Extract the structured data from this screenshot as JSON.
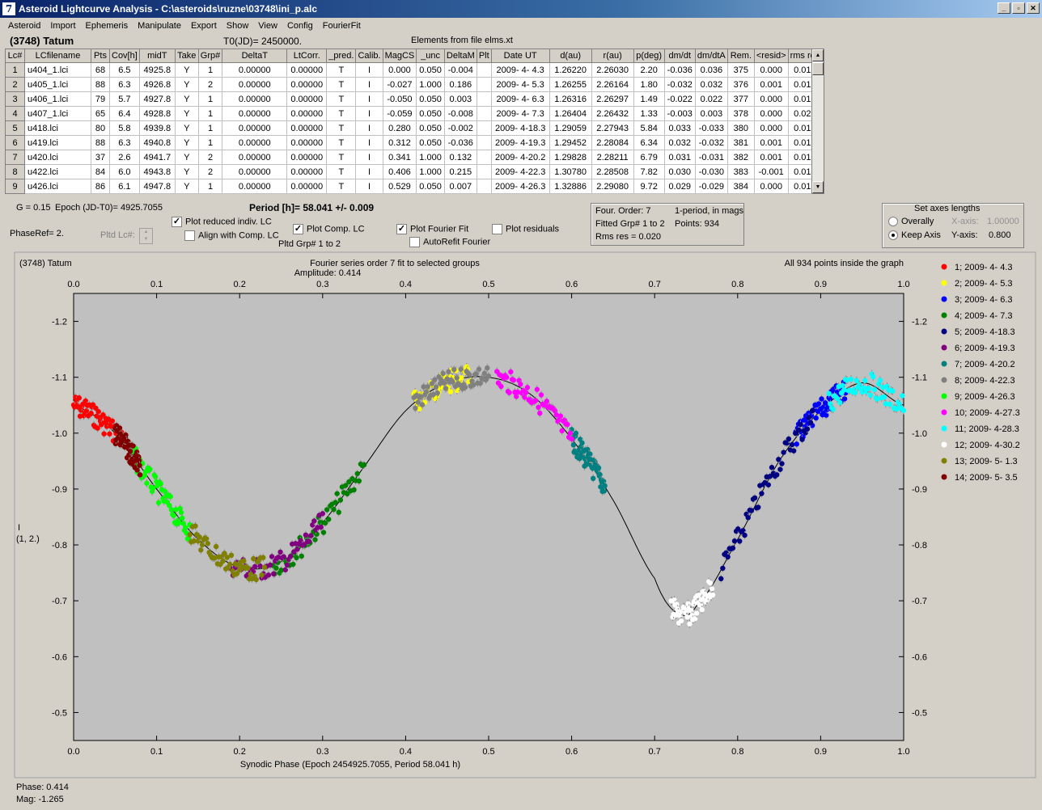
{
  "window": {
    "title": "Asteroid Lightcurve Analysis - C:\\asteroids\\ruzne\\03748\\ini_p.alc",
    "icon_letter": "7",
    "minimize": "_",
    "maximize": "▫",
    "close": "✕"
  },
  "menu": [
    "Asteroid",
    "Import",
    "Ephemeris",
    "Manipulate",
    "Export",
    "Show",
    "View",
    "Config",
    "FourierFit"
  ],
  "header": {
    "asteroid": "(3748) Tatum",
    "t0": "T0(JD)= 2450000.",
    "elements": "Elements from file elms.xt"
  },
  "table": {
    "columns": [
      "Lc#",
      "LCfilename",
      "Pts",
      "Cov[h]",
      "midT",
      "Take",
      "Grp#",
      "DeltaT",
      "LtCorr.",
      "_pred.",
      "Calib.",
      "MagCS",
      "_unc",
      "DeltaM",
      "Plt",
      "Date UT",
      "d(au)",
      "r(au)",
      "p(deg)",
      "dm/dt",
      "dm/dtA",
      "Rem.",
      "<resid>",
      "rms res"
    ],
    "rows": [
      [
        "1",
        "u404_1.lci",
        "68",
        "6.5",
        "4925.8",
        "Y",
        "1",
        "0.00000",
        "0.00000",
        "T",
        "I",
        "0.000",
        "0.050",
        "-0.004",
        "",
        "2009- 4- 4.3",
        "1.26220",
        "2.26030",
        "2.20",
        "-0.036",
        "0.036",
        "375",
        "0.000",
        "0.016"
      ],
      [
        "2",
        "u405_1.lci",
        "88",
        "6.3",
        "4926.8",
        "Y",
        "2",
        "0.00000",
        "0.00000",
        "T",
        "I",
        "-0.027",
        "1.000",
        "0.186",
        "",
        "2009- 4- 5.3",
        "1.26255",
        "2.26164",
        "1.80",
        "-0.032",
        "0.032",
        "376",
        "0.001",
        "0.015"
      ],
      [
        "3",
        "u406_1.lci",
        "79",
        "5.7",
        "4927.8",
        "Y",
        "1",
        "0.00000",
        "0.00000",
        "T",
        "I",
        "-0.050",
        "0.050",
        "0.003",
        "",
        "2009- 4- 6.3",
        "1.26316",
        "2.26297",
        "1.49",
        "-0.022",
        "0.022",
        "377",
        "0.000",
        "0.012"
      ],
      [
        "4",
        "u407_1.lci",
        "65",
        "6.4",
        "4928.8",
        "Y",
        "1",
        "0.00000",
        "0.00000",
        "T",
        "I",
        "-0.059",
        "0.050",
        "-0.008",
        "",
        "2009- 4- 7.3",
        "1.26404",
        "2.26432",
        "1.33",
        "-0.003",
        "0.003",
        "378",
        "0.000",
        "0.029"
      ],
      [
        "5",
        "u418.lci",
        "80",
        "5.8",
        "4939.8",
        "Y",
        "1",
        "0.00000",
        "0.00000",
        "T",
        "I",
        "0.280",
        "0.050",
        "-0.002",
        "",
        "2009- 4-18.3",
        "1.29059",
        "2.27943",
        "5.84",
        "0.033",
        "-0.033",
        "380",
        "0.000",
        "0.012"
      ],
      [
        "6",
        "u419.lci",
        "88",
        "6.3",
        "4940.8",
        "Y",
        "1",
        "0.00000",
        "0.00000",
        "T",
        "I",
        "0.312",
        "0.050",
        "-0.036",
        "",
        "2009- 4-19.3",
        "1.29452",
        "2.28084",
        "6.34",
        "0.032",
        "-0.032",
        "381",
        "0.001",
        "0.017"
      ],
      [
        "7",
        "u420.lci",
        "37",
        "2.6",
        "4941.7",
        "Y",
        "2",
        "0.00000",
        "0.00000",
        "T",
        "I",
        "0.341",
        "1.000",
        "0.132",
        "",
        "2009- 4-20.2",
        "1.29828",
        "2.28211",
        "6.79",
        "0.031",
        "-0.031",
        "382",
        "0.001",
        "0.019"
      ],
      [
        "8",
        "u422.lci",
        "84",
        "6.0",
        "4943.8",
        "Y",
        "2",
        "0.00000",
        "0.00000",
        "T",
        "I",
        "0.406",
        "1.000",
        "0.215",
        "",
        "2009- 4-22.3",
        "1.30780",
        "2.28508",
        "7.82",
        "0.030",
        "-0.030",
        "383",
        "-0.001",
        "0.013"
      ],
      [
        "9",
        "u426.lci",
        "86",
        "6.1",
        "4947.8",
        "Y",
        "1",
        "0.00000",
        "0.00000",
        "T",
        "I",
        "0.529",
        "0.050",
        "0.007",
        "",
        "2009- 4-26.3",
        "1.32886",
        "2.29080",
        "9.72",
        "0.029",
        "-0.029",
        "384",
        "0.000",
        "0.019"
      ]
    ]
  },
  "params": {
    "g": "G = 0.15",
    "epoch": "Epoch (JD-T0)= 4925.7055",
    "period": "Period [h]= 58.041 +/- 0.009",
    "phase_ref": "PhaseRef= 2.",
    "pltd_lc": "Pltd Lc#:",
    "pltd_grp": "Pltd Grp#  1   to   2"
  },
  "options": {
    "plot_reduced": {
      "label": "Plot reduced indiv. LC",
      "checked": true
    },
    "align": {
      "label": "Align with Comp. LC",
      "checked": false
    },
    "plot_comp": {
      "label": "Plot Comp. LC",
      "checked": true
    },
    "plot_fourier": {
      "label": "Plot Fourier Fit",
      "checked": true
    },
    "autorefit": {
      "label": "AutoRefit Fourier",
      "checked": false
    },
    "plot_residuals": {
      "label": "Plot residuals",
      "checked": false
    }
  },
  "fourier_info": {
    "order": "Four. Order:  7",
    "mode": "1-period, in mags",
    "fitted": "Fitted Grp# 1 to 2",
    "points": "Points: 934",
    "rms": "Rms res     = 0.020"
  },
  "axes_box": {
    "title": "Set axes lengths",
    "overally": "Overally",
    "keep": "Keep Axis",
    "x_label": "X-axis:",
    "x_value": "1.00000",
    "y_label": "Y-axis:",
    "y_value": "0.800",
    "selected": "keep"
  },
  "plot": {
    "name": "(3748) Tatum",
    "fit_title": "Fourier series order 7 fit to selected groups",
    "amplitude": "Amplitude: 0.414",
    "points_note": "All 934 points inside the graph",
    "ylabel_line1": "I",
    "ylabel_line2": "(1, 2.)",
    "xlabel": "Synodic Phase (Epoch 2454925.7055, Period 58.041 h)",
    "plot_bg": "#c0c0c0"
  },
  "chart_data": {
    "type": "scatter",
    "xlabel": "Synodic Phase (Epoch 2454925.7055, Period 58.041 h)",
    "ylabel": "I (1, 2.)",
    "xlim": [
      0.0,
      1.0
    ],
    "ylim": [
      -1.25,
      -0.45
    ],
    "y_inverted": true,
    "x_ticks": [
      "0.0",
      "0.1",
      "0.2",
      "0.3",
      "0.4",
      "0.5",
      "0.6",
      "0.7",
      "0.8",
      "0.9",
      "1.0"
    ],
    "y_ticks": [
      "-1.2",
      "-1.1",
      "-1.0",
      "-0.9",
      "-0.8",
      "-0.7",
      "-0.6",
      "-0.5"
    ],
    "fit_curve": [
      [
        0.0,
        -1.05
      ],
      [
        0.05,
        -1.0
      ],
      [
        0.1,
        -0.9
      ],
      [
        0.15,
        -0.81
      ],
      [
        0.2,
        -0.76
      ],
      [
        0.25,
        -0.77
      ],
      [
        0.3,
        -0.84
      ],
      [
        0.35,
        -0.94
      ],
      [
        0.4,
        -1.04
      ],
      [
        0.45,
        -1.09
      ],
      [
        0.5,
        -1.1
      ],
      [
        0.55,
        -1.07
      ],
      [
        0.6,
        -0.99
      ],
      [
        0.65,
        -0.88
      ],
      [
        0.7,
        -0.74
      ],
      [
        0.725,
        -0.68
      ],
      [
        0.75,
        -0.69
      ],
      [
        0.8,
        -0.81
      ],
      [
        0.85,
        -0.95
      ],
      [
        0.9,
        -1.04
      ],
      [
        0.95,
        -1.09
      ],
      [
        1.0,
        -1.05
      ]
    ],
    "series": [
      {
        "name": "1; 2009- 4- 4.3",
        "color": "#ff0000",
        "x": [
          0.0,
          0.06
        ],
        "y": [
          -1.05,
          -1.0
        ]
      },
      {
        "name": "2; 2009- 4- 5.3",
        "color": "#ffff00",
        "x": [
          0.41,
          0.48
        ],
        "y": [
          -1.08,
          -1.1
        ]
      },
      {
        "name": "3; 2009- 4- 6.3",
        "color": "#0000ff",
        "x": [
          0.87,
          0.93
        ],
        "y": [
          -0.98,
          -1.06
        ]
      },
      {
        "name": "4; 2009- 4- 7.3",
        "color": "#008000",
        "x": [
          0.24,
          0.35
        ],
        "y": [
          -0.78,
          -0.91
        ]
      },
      {
        "name": "5; 2009- 4-18.3",
        "color": "#000080",
        "x": [
          0.78,
          0.89
        ],
        "y": [
          -0.75,
          -1.0
        ]
      },
      {
        "name": "6; 2009- 4-19.3",
        "color": "#800080",
        "x": [
          0.19,
          0.3
        ],
        "y": [
          -0.77,
          -0.85
        ]
      },
      {
        "name": "7; 2009- 4-20.2",
        "color": "#008080",
        "x": [
          0.6,
          0.64
        ],
        "y": [
          -0.93,
          -0.85
        ]
      },
      {
        "name": "8; 2009- 4-22.3",
        "color": "#808080",
        "x": [
          0.41,
          0.5
        ],
        "y": [
          -1.08,
          -1.1
        ]
      },
      {
        "name": "9; 2009- 4-26.3",
        "color": "#00ff00",
        "x": [
          0.07,
          0.14
        ],
        "y": [
          -0.94,
          -0.87
        ]
      },
      {
        "name": "10; 2009- 4-27.3",
        "color": "#ff00ff",
        "x": [
          0.51,
          0.6
        ],
        "y": [
          -1.08,
          -0.94
        ]
      },
      {
        "name": "11; 2009- 4-28.3",
        "color": "#00ffff",
        "x": [
          0.91,
          1.0
        ],
        "y": [
          -1.05,
          -1.1
        ]
      },
      {
        "name": "12; 2009- 4-30.2",
        "color": "#ffffff",
        "x": [
          0.72,
          0.77
        ],
        "y": [
          -0.61,
          -0.74
        ]
      },
      {
        "name": "13; 2009- 5- 1.3",
        "color": "#808000",
        "x": [
          0.14,
          0.23
        ],
        "y": [
          -0.79,
          -0.76
        ]
      },
      {
        "name": "14; 2009- 5- 3.5",
        "color": "#800000",
        "x": [
          0.05,
          0.08
        ],
        "y": [
          -0.98,
          -0.95
        ]
      }
    ]
  },
  "status": {
    "phase": "Phase:  0.414",
    "mag": "Mag:    -1.265"
  }
}
